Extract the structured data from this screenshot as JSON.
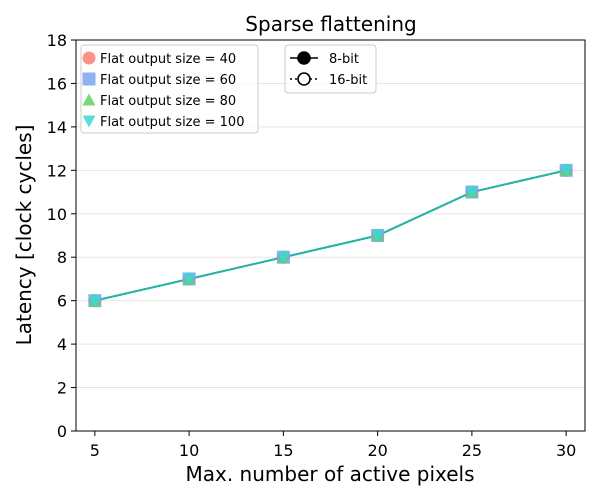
{
  "chart_data": {
    "type": "line",
    "title": "Sparse flattening",
    "xlabel": "Max. number of active pixels",
    "ylabel": "Latency [clock cycles]",
    "x": [
      5,
      10,
      15,
      20,
      25,
      30
    ],
    "xlim": [
      4,
      31
    ],
    "ylim": [
      0,
      18
    ],
    "xticks": [
      5,
      10,
      15,
      20,
      25,
      30
    ],
    "yticks": [
      0,
      2,
      4,
      6,
      8,
      10,
      12,
      14,
      16,
      18
    ],
    "grid": "horizontal",
    "series": [
      {
        "name": "Flat output size = 40",
        "marker": "circle",
        "color": "#fa8072",
        "values": [
          6,
          7,
          8,
          9,
          11,
          12
        ]
      },
      {
        "name": "Flat output size = 60",
        "marker": "square",
        "color": "#7aa3f0",
        "values": [
          6,
          7,
          8,
          9,
          11,
          12
        ]
      },
      {
        "name": "Flat output size = 80",
        "marker": "triangle-up",
        "color": "#5fd35f",
        "values": [
          6,
          7,
          8,
          9,
          11,
          12
        ]
      },
      {
        "name": "Flat output size = 100",
        "marker": "triangle-down",
        "color": "#3cd7d7",
        "values": [
          6,
          7,
          8,
          9,
          11,
          12
        ]
      }
    ],
    "line_color": "#2bb3a6",
    "legend_series_position": "top-left",
    "legend_style_position": "top-center",
    "legend_styles": [
      {
        "label": "8-bit",
        "line": "solid",
        "marker": "filled-circle"
      },
      {
        "label": "16-bit",
        "line": "dotted",
        "marker": "hollow-circle"
      }
    ]
  }
}
